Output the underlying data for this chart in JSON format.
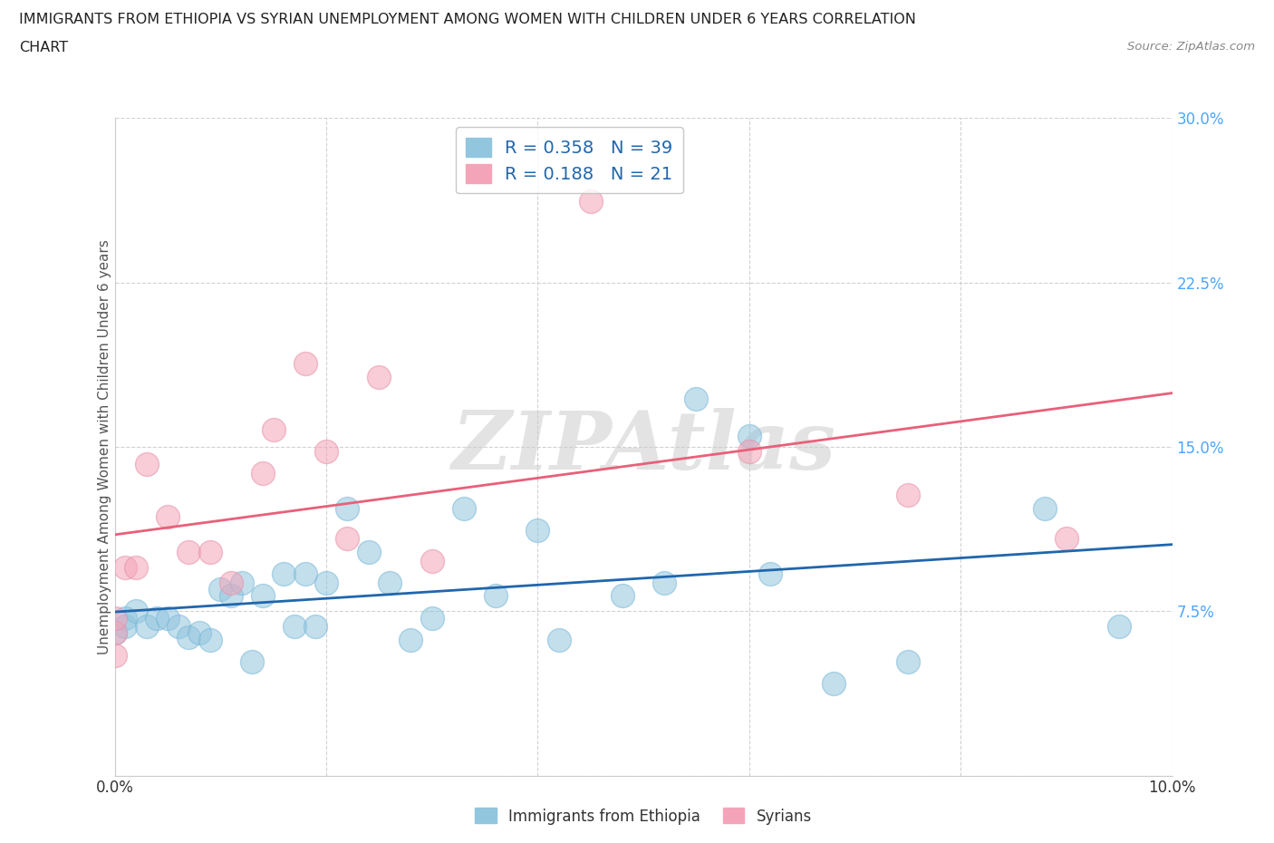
{
  "title_line1": "IMMIGRANTS FROM ETHIOPIA VS SYRIAN UNEMPLOYMENT AMONG WOMEN WITH CHILDREN UNDER 6 YEARS CORRELATION",
  "title_line2": "CHART",
  "source": "Source: ZipAtlas.com",
  "ylabel": "Unemployment Among Women with Children Under 6 years",
  "watermark": "ZIPAtlas",
  "legend_labels": [
    "Immigrants from Ethiopia",
    "Syrians"
  ],
  "ethiopia_R": 0.358,
  "ethiopia_N": 39,
  "syria_R": 0.188,
  "syria_N": 21,
  "xlim": [
    0.0,
    0.1
  ],
  "ylim": [
    0.0,
    0.3
  ],
  "xticks": [
    0.0,
    0.02,
    0.04,
    0.06,
    0.08,
    0.1
  ],
  "yticks": [
    0.0,
    0.075,
    0.15,
    0.225,
    0.3
  ],
  "xtick_labels": [
    "0.0%",
    "",
    "",
    "",
    "",
    "10.0%"
  ],
  "ytick_labels": [
    "",
    "7.5%",
    "15.0%",
    "22.5%",
    "30.0%"
  ],
  "ethiopia_color": "#92c5de",
  "syria_color": "#f4a4b8",
  "ethiopia_line_color": "#2166ac",
  "syria_line_color": "#e8607a",
  "tick_label_color": "#4da6ff",
  "ethiopia_x": [
    0.0,
    0.001,
    0.001,
    0.002,
    0.003,
    0.004,
    0.005,
    0.006,
    0.007,
    0.008,
    0.009,
    0.01,
    0.011,
    0.012,
    0.013,
    0.014,
    0.016,
    0.017,
    0.018,
    0.019,
    0.02,
    0.022,
    0.024,
    0.026,
    0.028,
    0.03,
    0.033,
    0.036,
    0.04,
    0.042,
    0.048,
    0.052,
    0.055,
    0.06,
    0.062,
    0.068,
    0.075,
    0.088,
    0.095
  ],
  "ethiopia_y": [
    0.065,
    0.072,
    0.068,
    0.075,
    0.068,
    0.072,
    0.072,
    0.068,
    0.063,
    0.065,
    0.062,
    0.085,
    0.082,
    0.088,
    0.052,
    0.082,
    0.092,
    0.068,
    0.092,
    0.068,
    0.088,
    0.122,
    0.102,
    0.088,
    0.062,
    0.072,
    0.122,
    0.082,
    0.112,
    0.062,
    0.082,
    0.088,
    0.172,
    0.155,
    0.092,
    0.042,
    0.052,
    0.122,
    0.068
  ],
  "syria_x": [
    0.0,
    0.001,
    0.002,
    0.003,
    0.005,
    0.007,
    0.009,
    0.011,
    0.014,
    0.015,
    0.018,
    0.02,
    0.022,
    0.025,
    0.03,
    0.045,
    0.06,
    0.075,
    0.09,
    0.0,
    0.0
  ],
  "syria_y": [
    0.065,
    0.095,
    0.095,
    0.142,
    0.118,
    0.102,
    0.102,
    0.088,
    0.138,
    0.158,
    0.188,
    0.148,
    0.108,
    0.182,
    0.098,
    0.262,
    0.148,
    0.128,
    0.108,
    0.072,
    0.055
  ]
}
